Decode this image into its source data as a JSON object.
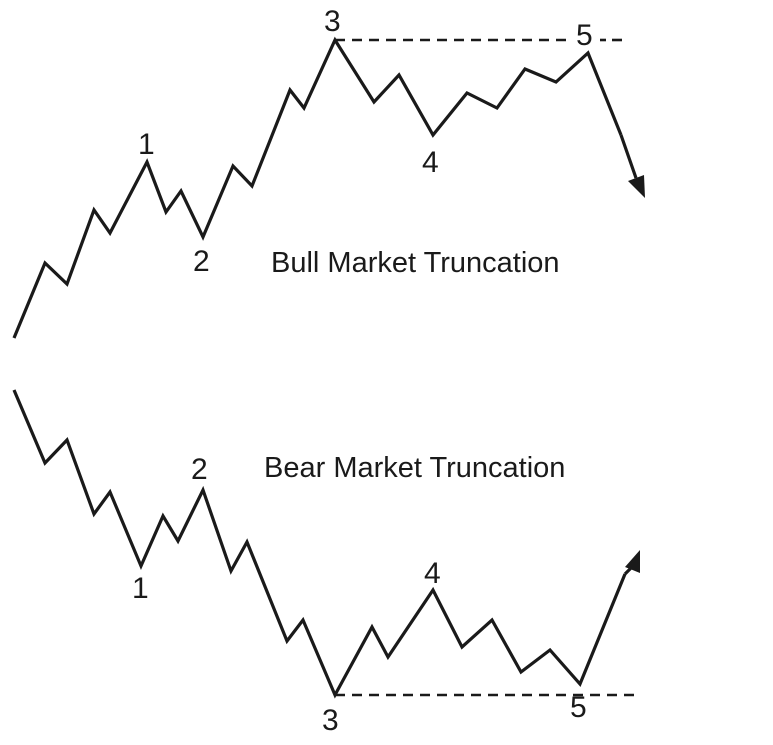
{
  "bull": {
    "title": "Bull Market Truncation",
    "labels": {
      "w1": "1",
      "w2": "2",
      "w3": "3",
      "w4": "4",
      "w5": "5"
    }
  },
  "bear": {
    "title": "Bear Market Truncation",
    "labels": {
      "w1": "1",
      "w2": "2",
      "w3": "3",
      "w4": "4",
      "w5": "5"
    }
  }
}
